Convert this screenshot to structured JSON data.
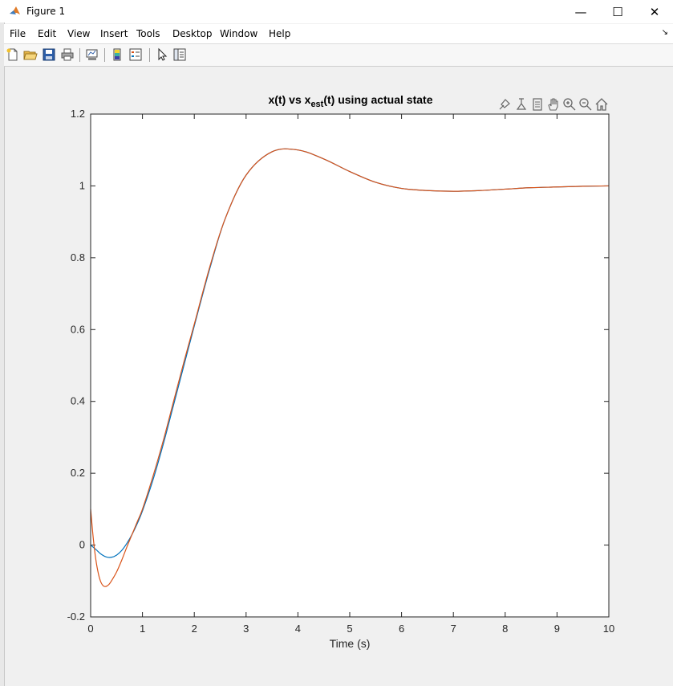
{
  "window": {
    "title": "Figure 1",
    "minimize_glyph": "—",
    "maximize_glyph": "☐",
    "close_glyph": "✕"
  },
  "menu": {
    "items": [
      "File",
      "Edit",
      "View",
      "Insert",
      "Tools",
      "Desktop",
      "Window",
      "Help"
    ],
    "overflow_glyph": "↘"
  },
  "toolbar": {
    "icons": [
      "new-figure-icon",
      "open-file-icon",
      "save-icon",
      "print-icon",
      "link-plot-icon",
      "colorbar-icon",
      "legend-icon",
      "pointer-icon",
      "property-inspector-icon"
    ]
  },
  "axes_toolbar": {
    "icons": [
      "brush-icon",
      "data-cursor-icon",
      "rotate-icon",
      "pan-icon",
      "zoom-in-icon",
      "zoom-out-icon",
      "home-icon"
    ]
  },
  "chart_data": {
    "type": "line",
    "title_main": "x(t) vs x",
    "title_sub": "est",
    "title_rest": "(t) using actual state",
    "xlabel": "Time (s)",
    "ylabel": "",
    "xlim": [
      0,
      10
    ],
    "ylim": [
      -0.2,
      1.2
    ],
    "xticks": [
      "0",
      "1",
      "2",
      "3",
      "4",
      "5",
      "6",
      "7",
      "8",
      "9",
      "10"
    ],
    "yticks": [
      "-0.2",
      "0",
      "0.2",
      "0.4",
      "0.6",
      "0.8",
      "1",
      "1.2"
    ],
    "grid": false,
    "series": [
      {
        "color": "#0072bd",
        "x": [
          0,
          0.1,
          0.2,
          0.3,
          0.4,
          0.5,
          0.6,
          0.7,
          0.8,
          0.9,
          1.0,
          1.2,
          1.4,
          1.6,
          1.8,
          2.0,
          2.3,
          2.6,
          3.0,
          3.5,
          4.0,
          4.5,
          5.0,
          5.5,
          6.0,
          6.5,
          7.0,
          7.5,
          8.0,
          8.5,
          9.0,
          9.5,
          10.0
        ],
        "y": [
          0.0,
          -0.012,
          -0.025,
          -0.033,
          -0.034,
          -0.028,
          -0.015,
          0.005,
          0.03,
          0.06,
          0.095,
          0.18,
          0.28,
          0.39,
          0.5,
          0.61,
          0.77,
          0.91,
          1.03,
          1.095,
          1.1,
          1.075,
          1.04,
          1.01,
          0.993,
          0.987,
          0.985,
          0.987,
          0.991,
          0.995,
          0.997,
          0.999,
          1.0
        ]
      },
      {
        "color": "#d95319",
        "x": [
          0,
          0.05,
          0.1,
          0.15,
          0.2,
          0.25,
          0.3,
          0.35,
          0.4,
          0.5,
          0.6,
          0.7,
          0.8,
          0.9,
          1.0,
          1.2,
          1.4,
          1.6,
          1.8,
          2.0,
          2.3,
          2.6,
          3.0,
          3.5,
          4.0,
          4.5,
          5.0,
          5.5,
          6.0,
          6.5,
          7.0,
          7.5,
          8.0,
          8.5,
          9.0,
          9.5,
          10.0
        ],
        "y": [
          0.1,
          0.02,
          -0.04,
          -0.08,
          -0.104,
          -0.114,
          -0.115,
          -0.11,
          -0.1,
          -0.075,
          -0.042,
          -0.005,
          0.03,
          0.065,
          0.1,
          0.19,
          0.29,
          0.4,
          0.51,
          0.615,
          0.775,
          0.91,
          1.03,
          1.095,
          1.1,
          1.075,
          1.04,
          1.01,
          0.993,
          0.987,
          0.985,
          0.987,
          0.991,
          0.995,
          0.997,
          0.999,
          1.0
        ]
      }
    ]
  }
}
